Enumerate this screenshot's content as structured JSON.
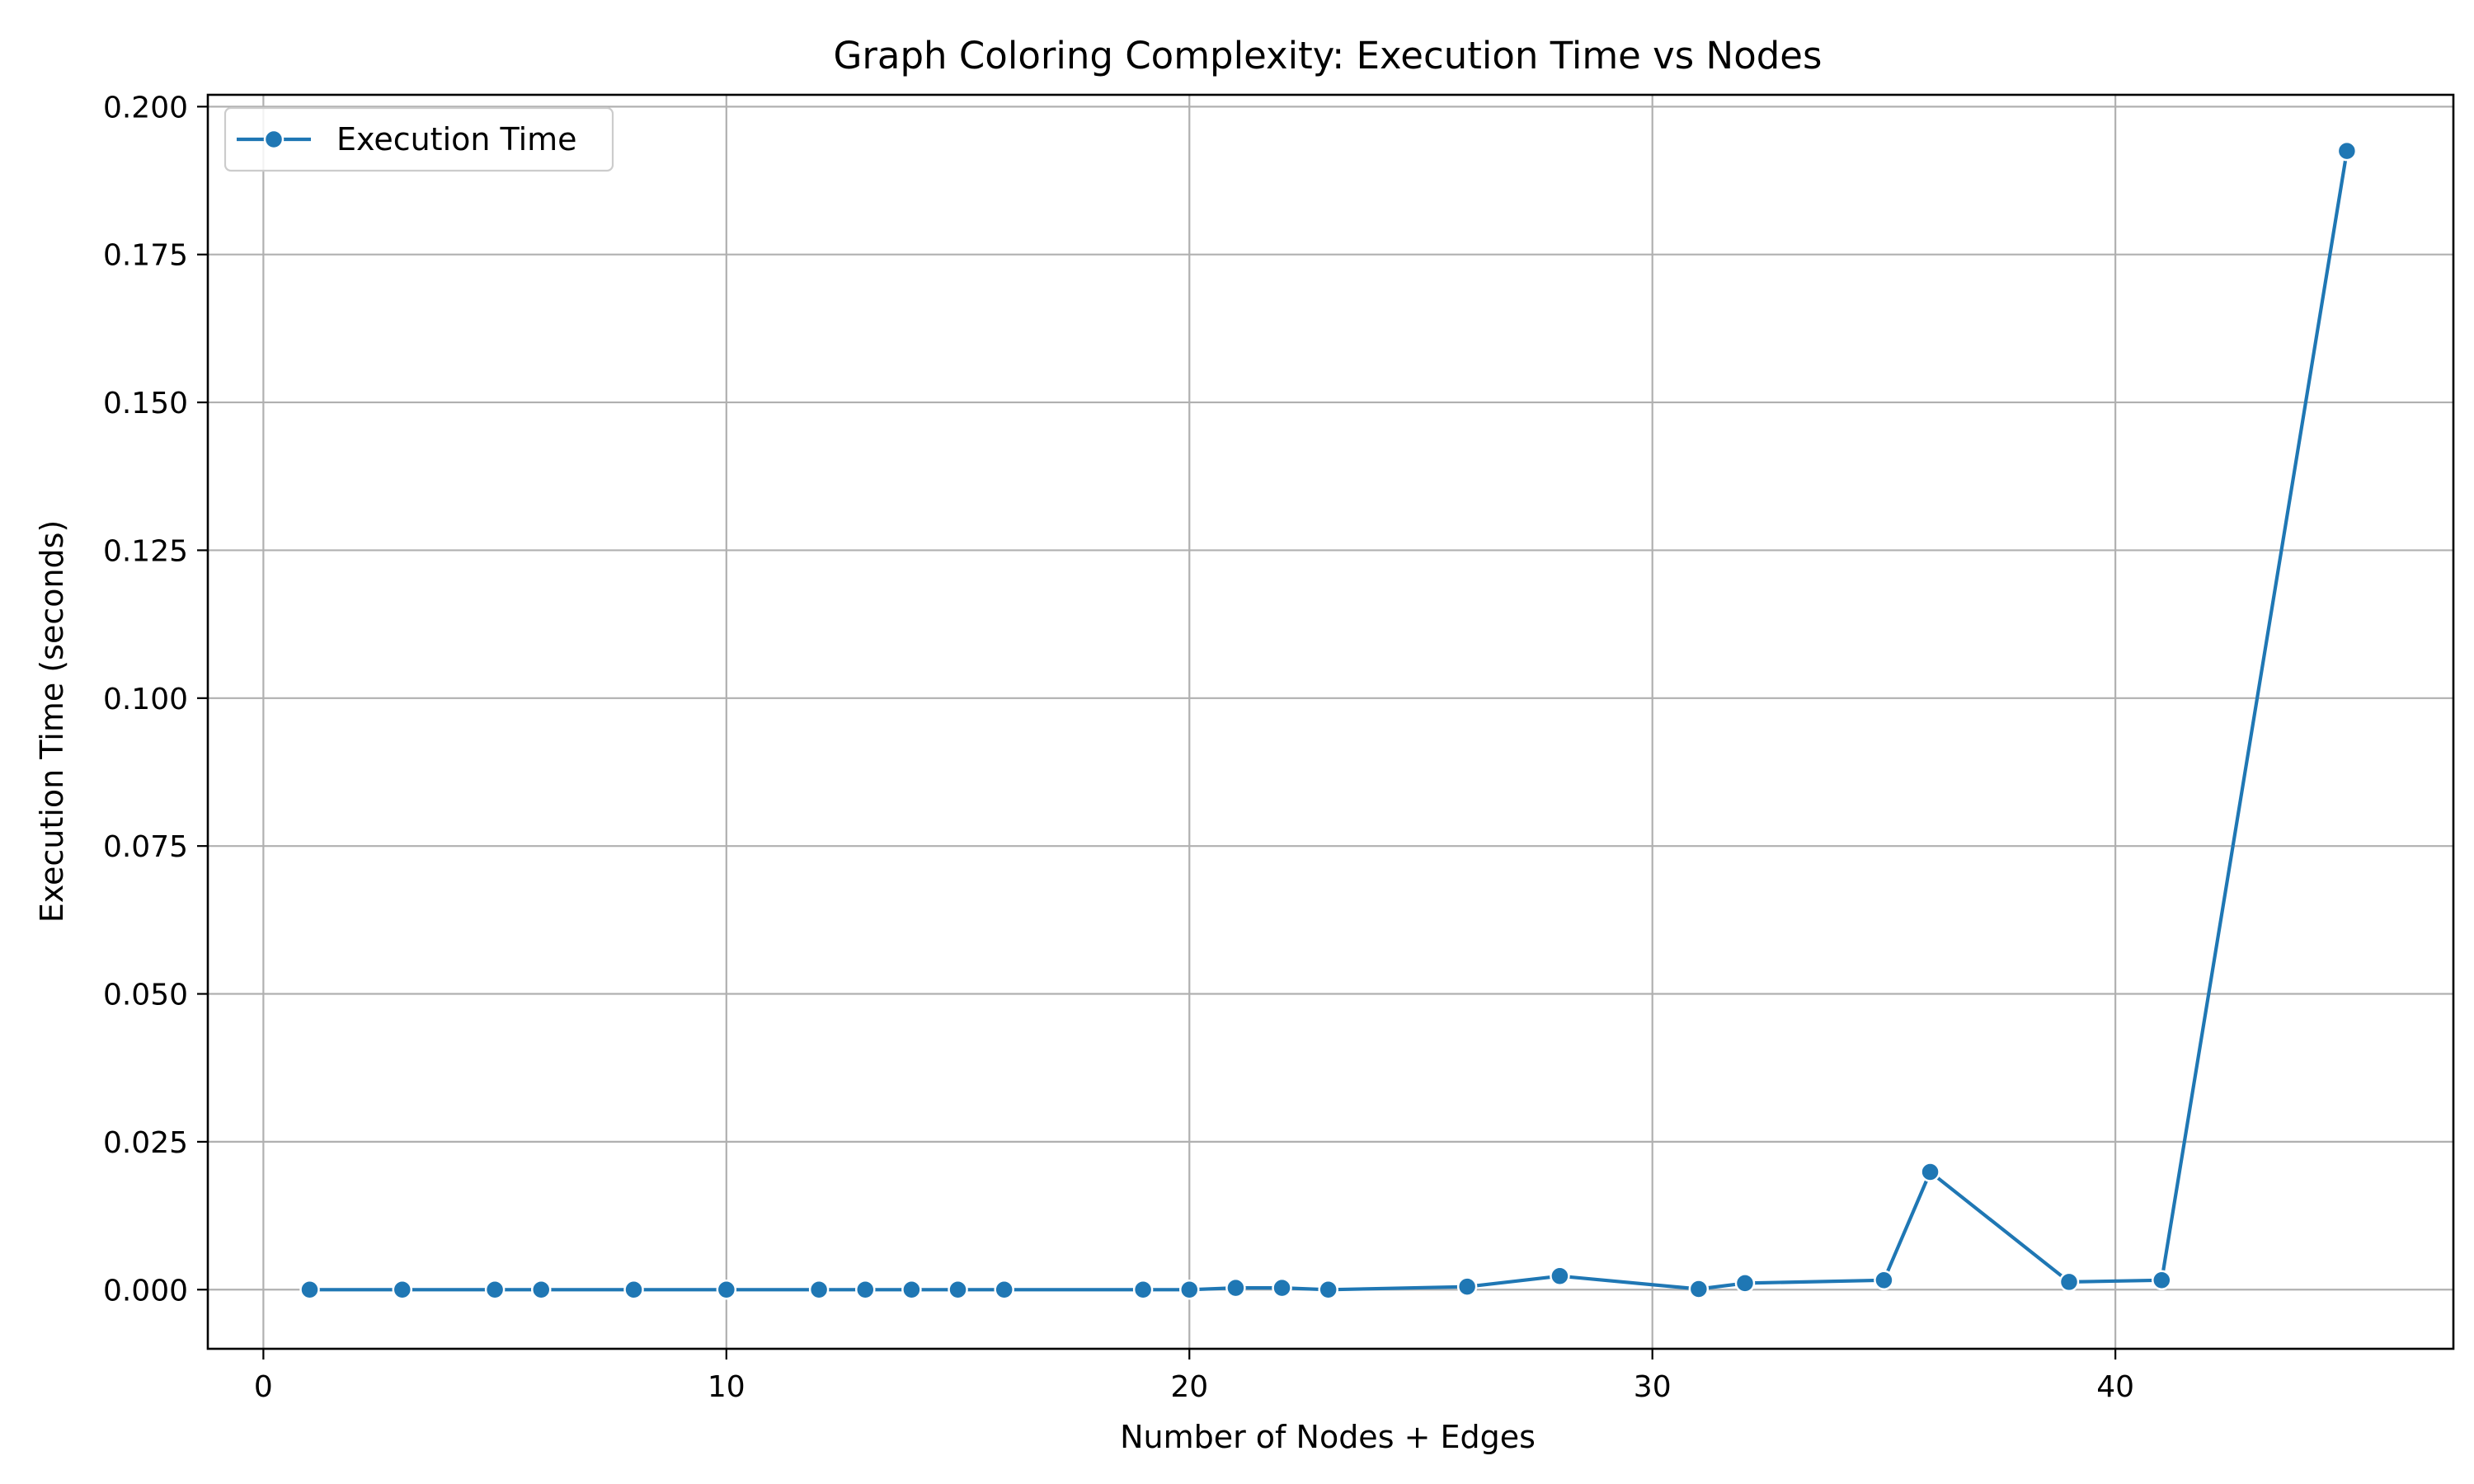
{
  "chart_data": {
    "type": "line",
    "title": "Graph Coloring Complexity: Execution Time vs Nodes",
    "xlabel": "Number of Nodes + Edges",
    "ylabel": "Execution Time (seconds)",
    "xlim": [
      -1.2,
      47.3
    ],
    "ylim": [
      -0.01,
      0.202
    ],
    "xticks": [
      0,
      10,
      20,
      30,
      40
    ],
    "xtick_labels": [
      "0",
      "10",
      "20",
      "30",
      "40"
    ],
    "yticks": [
      0.0,
      0.025,
      0.05,
      0.075,
      0.1,
      0.125,
      0.15,
      0.175,
      0.2
    ],
    "ytick_labels": [
      "0.000",
      "0.025",
      "0.050",
      "0.075",
      "0.100",
      "0.125",
      "0.150",
      "0.175",
      "0.200"
    ],
    "grid": true,
    "legend_position": "top-left",
    "series": [
      {
        "name": "Execution Time",
        "color": "#1f77b4",
        "marker": "circle",
        "x": [
          1,
          3,
          5,
          6,
          8,
          10,
          12,
          13,
          14,
          15,
          16,
          19,
          20,
          21,
          22,
          23,
          26,
          28,
          31,
          32,
          35,
          36,
          39,
          41,
          45
        ],
        "y": [
          0.0,
          0.0,
          0.0,
          0.0,
          0.0,
          0.0,
          0.0,
          0.0,
          0.0,
          0.0,
          0.0,
          0.0,
          0.0,
          0.0003,
          0.0003,
          0.0,
          0.0005,
          0.0023,
          0.0001,
          0.0011,
          0.0016,
          0.0199,
          0.0013,
          0.0016,
          0.1925
        ]
      }
    ]
  }
}
